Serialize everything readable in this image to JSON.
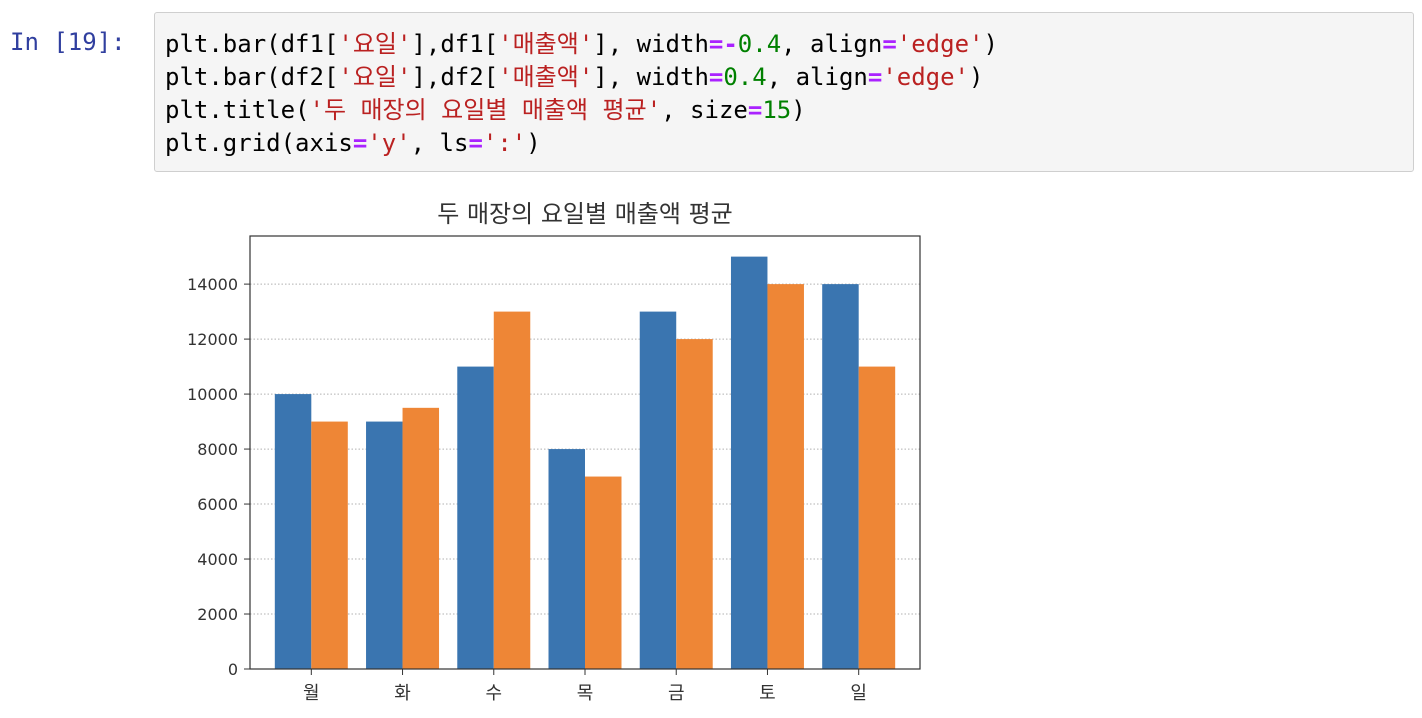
{
  "cell": {
    "prompt": "In [19]:",
    "code_lines": [
      [
        {
          "t": "plt.bar(df1[",
          "c": "plain"
        },
        {
          "t": "'요일'",
          "c": "str"
        },
        {
          "t": "],df1[",
          "c": "plain"
        },
        {
          "t": "'매출액'",
          "c": "str"
        },
        {
          "t": "], width",
          "c": "plain"
        },
        {
          "t": "=-",
          "c": "op"
        },
        {
          "t": "0.4",
          "c": "num"
        },
        {
          "t": ", align",
          "c": "plain"
        },
        {
          "t": "=",
          "c": "op"
        },
        {
          "t": "'edge'",
          "c": "str"
        },
        {
          "t": ")",
          "c": "plain"
        }
      ],
      [
        {
          "t": "plt.bar(df2[",
          "c": "plain"
        },
        {
          "t": "'요일'",
          "c": "str"
        },
        {
          "t": "],df2[",
          "c": "plain"
        },
        {
          "t": "'매출액'",
          "c": "str"
        },
        {
          "t": "], width",
          "c": "plain"
        },
        {
          "t": "=",
          "c": "op"
        },
        {
          "t": "0.4",
          "c": "num"
        },
        {
          "t": ", align",
          "c": "plain"
        },
        {
          "t": "=",
          "c": "op"
        },
        {
          "t": "'edge'",
          "c": "str"
        },
        {
          "t": ")",
          "c": "plain"
        }
      ],
      [
        {
          "t": "plt.title(",
          "c": "plain"
        },
        {
          "t": "'두 매장의 요일별 매출액 평균'",
          "c": "str"
        },
        {
          "t": ", size",
          "c": "plain"
        },
        {
          "t": "=",
          "c": "op"
        },
        {
          "t": "15",
          "c": "num"
        },
        {
          "t": ")",
          "c": "plain"
        }
      ],
      [
        {
          "t": "plt.grid(axis",
          "c": "plain"
        },
        {
          "t": "=",
          "c": "op"
        },
        {
          "t": "'y'",
          "c": "str"
        },
        {
          "t": ", ls",
          "c": "plain"
        },
        {
          "t": "=",
          "c": "op"
        },
        {
          "t": "':'",
          "c": "str"
        },
        {
          "t": ")",
          "c": "plain"
        }
      ]
    ]
  },
  "chart_data": {
    "type": "bar",
    "title": "두 매장의 요일별 매출액 평균",
    "xlabel": "",
    "ylabel": "",
    "categories": [
      "월",
      "화",
      "수",
      "목",
      "금",
      "토",
      "일"
    ],
    "series": [
      {
        "values": [
          10000,
          9000,
          11000,
          8000,
          13000,
          15000,
          14000
        ],
        "color": "#3a75b0"
      },
      {
        "values": [
          9000,
          9500,
          13000,
          7000,
          12000,
          14000,
          11000
        ],
        "color": "#ee8636"
      }
    ],
    "ylim": [
      0,
      15750
    ],
    "yticks": [
      0,
      2000,
      4000,
      6000,
      8000,
      10000,
      12000,
      14000
    ],
    "grid": "y-dotted",
    "legend": "none"
  }
}
